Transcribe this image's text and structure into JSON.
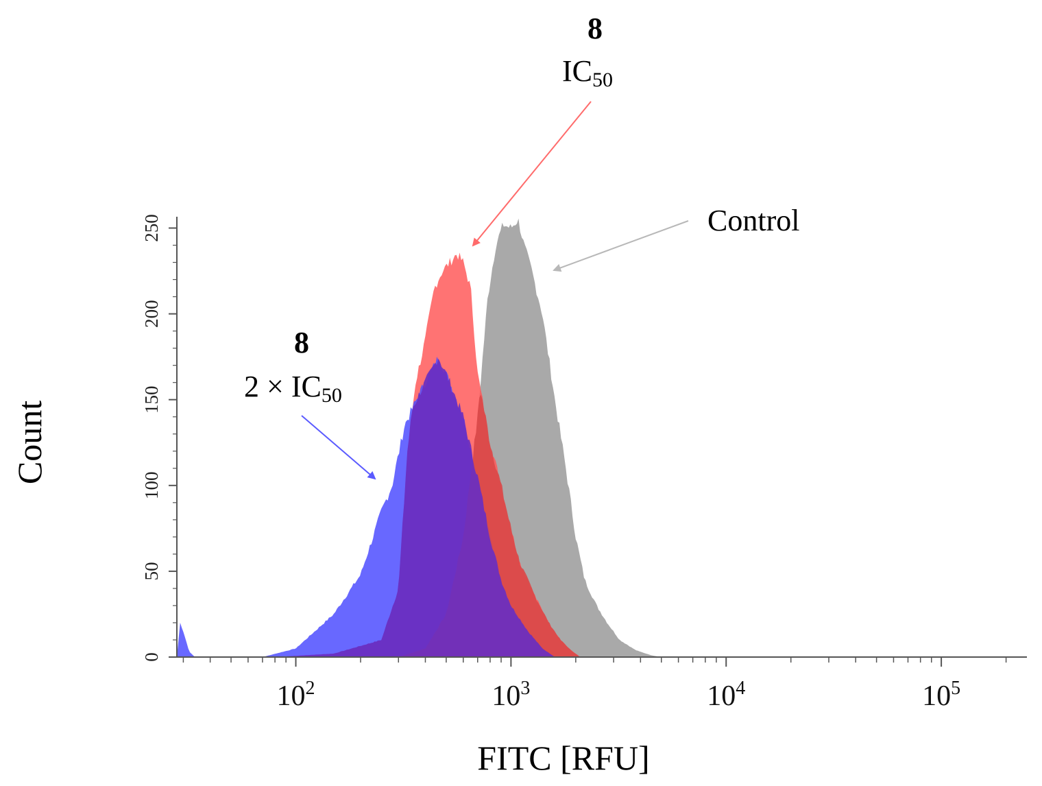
{
  "chart_data": {
    "type": "area",
    "title": "",
    "xlabel": "FITC [RFU]",
    "ylabel": "Count",
    "x_scale": "log",
    "xlim": [
      28,
      250000
    ],
    "ylim": [
      0,
      255
    ],
    "x_ticks": [
      {
        "value": 100,
        "base": "10",
        "exp": "2"
      },
      {
        "value": 1000,
        "base": "10",
        "exp": "3"
      },
      {
        "value": 10000,
        "base": "10",
        "exp": "4"
      },
      {
        "value": 100000,
        "base": "10",
        "exp": "5"
      }
    ],
    "y_ticks": [
      0,
      50,
      100,
      150,
      200,
      250
    ],
    "grid": false,
    "legend": "none",
    "series": [
      {
        "key": "control",
        "color": "#a9a9a9",
        "points": [
          [
            30,
            0
          ],
          [
            300,
            0
          ],
          [
            400,
            5
          ],
          [
            500,
            25
          ],
          [
            600,
            70
          ],
          [
            700,
            140
          ],
          [
            780,
            210
          ],
          [
            850,
            240
          ],
          [
            920,
            252
          ],
          [
            1000,
            250
          ],
          [
            1080,
            255
          ],
          [
            1150,
            240
          ],
          [
            1250,
            225
          ],
          [
            1400,
            200
          ],
          [
            1600,
            150
          ],
          [
            1800,
            110
          ],
          [
            2000,
            70
          ],
          [
            2200,
            45
          ],
          [
            2500,
            30
          ],
          [
            2800,
            20
          ],
          [
            3200,
            10
          ],
          [
            3800,
            4
          ],
          [
            4500,
            1
          ],
          [
            5000,
            0
          ],
          [
            250000,
            0
          ]
        ]
      },
      {
        "key": "ic50",
        "color": "#ff5a5a",
        "points": [
          [
            30,
            0
          ],
          [
            80,
            0
          ],
          [
            150,
            2
          ],
          [
            250,
            10
          ],
          [
            300,
            40
          ],
          [
            330,
            120
          ],
          [
            360,
            160
          ],
          [
            400,
            185
          ],
          [
            440,
            215
          ],
          [
            480,
            225
          ],
          [
            520,
            230
          ],
          [
            560,
            235
          ],
          [
            600,
            230
          ],
          [
            650,
            215
          ],
          [
            700,
            165
          ],
          [
            800,
            125
          ],
          [
            900,
            100
          ],
          [
            1000,
            75
          ],
          [
            1100,
            55
          ],
          [
            1300,
            35
          ],
          [
            1500,
            20
          ],
          [
            1700,
            10
          ],
          [
            1900,
            4
          ],
          [
            2100,
            0
          ],
          [
            250000,
            0
          ]
        ]
      },
      {
        "key": "2ic50",
        "color": "#4d4dff",
        "points": [
          [
            28,
            0
          ],
          [
            29,
            20
          ],
          [
            30,
            15
          ],
          [
            32,
            3
          ],
          [
            34,
            0
          ],
          [
            70,
            0
          ],
          [
            100,
            5
          ],
          [
            150,
            25
          ],
          [
            200,
            48
          ],
          [
            250,
            85
          ],
          [
            280,
            100
          ],
          [
            320,
            135
          ],
          [
            380,
            155
          ],
          [
            420,
            165
          ],
          [
            460,
            175
          ],
          [
            520,
            160
          ],
          [
            600,
            140
          ],
          [
            700,
            105
          ],
          [
            800,
            70
          ],
          [
            900,
            45
          ],
          [
            1000,
            30
          ],
          [
            1200,
            15
          ],
          [
            1400,
            5
          ],
          [
            1600,
            0
          ],
          [
            250000,
            0
          ]
        ]
      }
    ],
    "annotations": [
      {
        "key": "ic50",
        "line1": "8",
        "line2_main": "IC",
        "line2_sub": "50",
        "color": "#ff6b6b"
      },
      {
        "key": "2ic50",
        "line1": "8",
        "line2_main": "2 × IC",
        "line2_sub": "50",
        "color": "#5a5aff"
      },
      {
        "key": "control",
        "line1": "Control",
        "color": "#b8b8b8"
      }
    ]
  }
}
